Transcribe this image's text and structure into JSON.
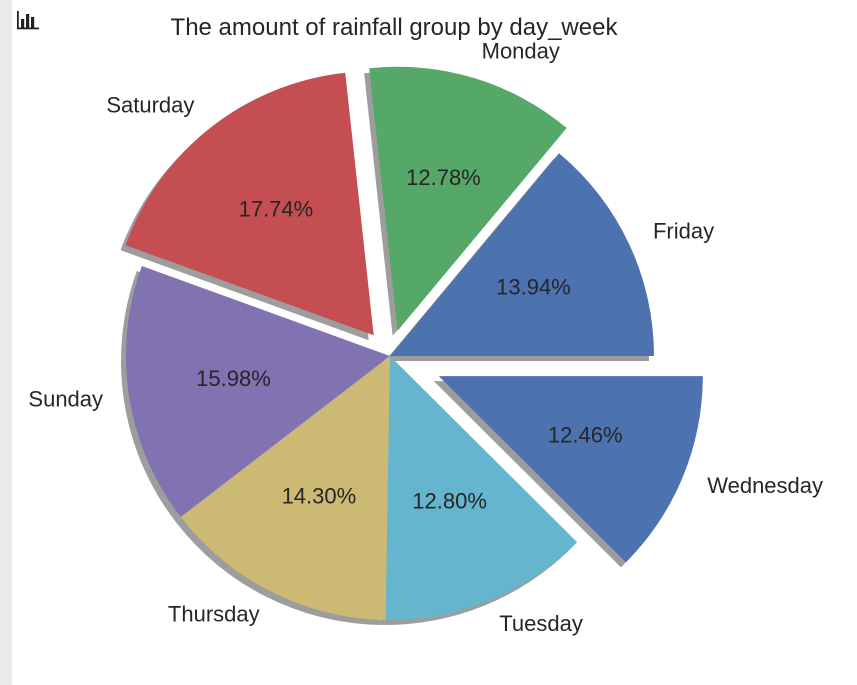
{
  "toolbar": {
    "icon": "bar-chart-icon"
  },
  "chart_data": {
    "type": "pie",
    "title": "The amount of rainfall group by day_week",
    "start_angle_deg": 0,
    "direction": "counterclockwise",
    "shadow": true,
    "categories": [
      "Friday",
      "Monday",
      "Saturday",
      "Sunday",
      "Thursday",
      "Tuesday",
      "Wednesday"
    ],
    "values": [
      13.94,
      12.78,
      17.74,
      15.98,
      14.3,
      12.8,
      12.46
    ],
    "labels": [
      "13.94%",
      "12.78%",
      "17.74%",
      "15.98%",
      "14.30%",
      "12.80%",
      "12.46%"
    ],
    "explode": [
      0,
      0.1,
      0.1,
      0,
      0,
      0,
      0.2
    ],
    "colors": [
      "#4c72b0",
      "#55a868",
      "#c44e52",
      "#8172b2",
      "#ccb974",
      "#64b5cd",
      "#4c72b0"
    ]
  }
}
